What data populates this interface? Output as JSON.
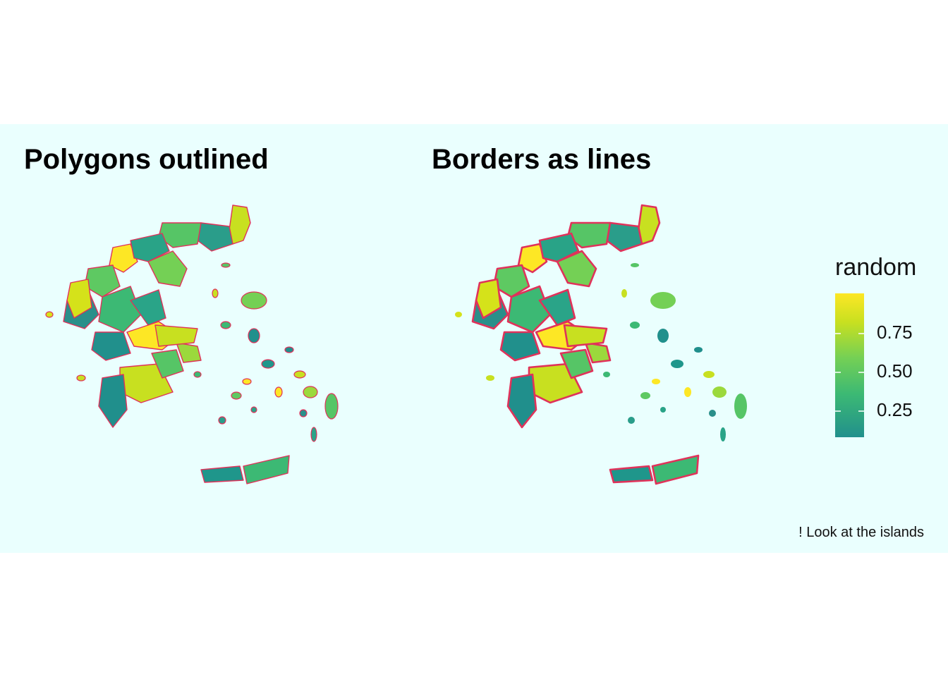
{
  "titles": {
    "left": "Polygons outlined",
    "right": "Borders as lines"
  },
  "legend": {
    "title": "random",
    "ticks": [
      "0.75",
      "0.50",
      "0.25"
    ],
    "gradient": [
      "#21908c",
      "#3cb974",
      "#74d055",
      "#c8e020",
      "#fde725"
    ]
  },
  "caption": "! Look at the islands",
  "colors": {
    "panel_background": "#eafffe",
    "border_line": "#e0325a"
  },
  "regions": [
    {
      "fill": "#c8e020"
    },
    {
      "fill": "#2a9d8a"
    },
    {
      "fill": "#56c566"
    },
    {
      "fill": "#fde725"
    },
    {
      "fill": "#29a387"
    },
    {
      "fill": "#74d055"
    },
    {
      "fill": "#5ec962"
    },
    {
      "fill": "#2a8f8a"
    },
    {
      "fill": "#3cb974"
    },
    {
      "fill": "#fde725"
    },
    {
      "fill": "#2aa488"
    },
    {
      "fill": "#21908c"
    },
    {
      "fill": "#9bd93c"
    },
    {
      "fill": "#c8e020"
    },
    {
      "fill": "#208f8c"
    },
    {
      "fill": "#56c566"
    },
    {
      "fill": "#d5e21a"
    },
    {
      "fill": "#1f968b"
    },
    {
      "fill": "#3cb974"
    },
    {
      "fill": "#c8e020"
    }
  ]
}
